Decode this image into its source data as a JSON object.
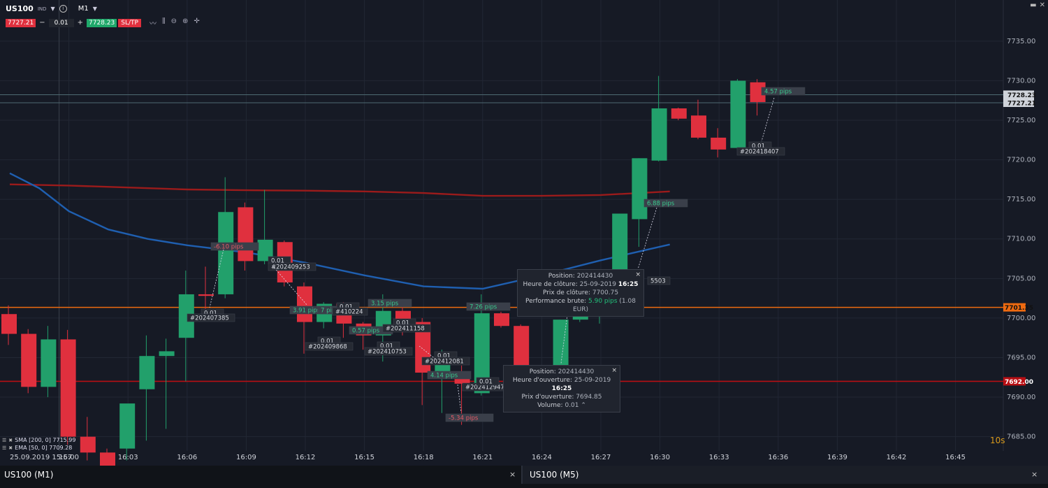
{
  "toolbar": {
    "symbol": "US100",
    "symbol_tag": "IND",
    "timeframe": "M1",
    "bid": "7727.21",
    "minus": "−",
    "quantity": "0.01",
    "plus": "+",
    "ask": "7728.23",
    "sltp": "SL/TP",
    "tool_icons": [
      "line-chart-icon",
      "candles-icon",
      "zoom-out-icon",
      "zoom-in-icon",
      "crosshair-icon"
    ]
  },
  "indicators": [
    {
      "label": "SMA [200, 0] 7715.99",
      "color": "#9b1b1b"
    },
    {
      "label": "EMA [50, 0] 7709.28",
      "color": "#1f5fb0"
    }
  ],
  "timer": "10s",
  "tabs": [
    {
      "label": "US100 (M1)",
      "close": "×"
    },
    {
      "label": "US100 (M5)",
      "close": "×"
    }
  ],
  "colors": {
    "up": "#22a06b",
    "down": "#e0303e",
    "sma": "#9b1b1b",
    "ema": "#1f5fb0",
    "orange": "#ee6a10",
    "darkred": "#b80f14"
  },
  "chart_data": {
    "type": "candlestick",
    "y_ticks": [
      7685,
      7690,
      7695,
      7700,
      7705,
      7710,
      7715,
      7720,
      7725,
      7730,
      7735
    ],
    "y_tick_labels": [
      "7685.00",
      "7690.00",
      "7695.00",
      "7700.00",
      "7705.00",
      "7710.00",
      "7715.00",
      "7720.00",
      "7725.00",
      "7730.00",
      "7735.00"
    ],
    "ylim": [
      7683.2,
      7740.2
    ],
    "x_start_label": "25.09.2019 15:57",
    "x_tick_labels": [
      "16:00",
      "16:03",
      "16:06",
      "16:09",
      "16:12",
      "16:15",
      "16:18",
      "16:21",
      "16:24",
      "16:27",
      "16:30",
      "16:33",
      "16:36",
      "16:39",
      "16:42",
      "16:45"
    ],
    "price_lines": [
      {
        "value": 7728.23,
        "label": "7728.23",
        "bg": "#cfd3da",
        "fg": "#111"
      },
      {
        "value": 7727.21,
        "label": "7727.21",
        "bg": "#cfd3da",
        "fg": "#111"
      },
      {
        "value": 7701.35,
        "label": "7701.35",
        "bg": "#ee6a10",
        "fg": "#111"
      },
      {
        "value": 7692.0,
        "label": "7692.00",
        "bg": "#b80f14",
        "fg": "#fff"
      }
    ],
    "candles": [
      {
        "o": 7700.5,
        "h": 7701.6,
        "l": 7696.6,
        "c": 7698.0
      },
      {
        "o": 7698.0,
        "h": 7698.6,
        "l": 7690.5,
        "c": 7691.3
      },
      {
        "o": 7691.3,
        "h": 7699.0,
        "l": 7690.0,
        "c": 7697.3
      },
      {
        "o": 7697.3,
        "h": 7698.5,
        "l": 7684.0,
        "c": 7685.0
      },
      {
        "o": 7685.0,
        "h": 7687.5,
        "l": 7682.0,
        "c": 7683.0
      },
      {
        "o": 7683.0,
        "h": 7683.5,
        "l": 7680.0,
        "c": 7681.0
      },
      {
        "o": 7683.5,
        "h": 7689.0,
        "l": 7682.0,
        "c": 7689.2
      },
      {
        "o": 7691.0,
        "h": 7697.8,
        "l": 7684.5,
        "c": 7695.2
      },
      {
        "o": 7695.2,
        "h": 7697.4,
        "l": 7686.0,
        "c": 7695.8
      },
      {
        "o": 7697.5,
        "h": 7706.0,
        "l": 7692.0,
        "c": 7703.0
      },
      {
        "o": 7703.0,
        "h": 7706.5,
        "l": 7701.0,
        "c": 7702.8
      },
      {
        "o": 7703.0,
        "h": 7717.8,
        "l": 7702.5,
        "c": 7713.4
      },
      {
        "o": 7714.0,
        "h": 7714.6,
        "l": 7706.0,
        "c": 7707.2
      },
      {
        "o": 7707.2,
        "h": 7716.2,
        "l": 7706.8,
        "c": 7709.9
      },
      {
        "o": 7709.6,
        "h": 7709.8,
        "l": 7704.0,
        "c": 7704.5
      },
      {
        "o": 7704.0,
        "h": 7704.5,
        "l": 7695.5,
        "c": 7699.5
      },
      {
        "o": 7699.5,
        "h": 7702.0,
        "l": 7698.7,
        "c": 7701.8
      },
      {
        "o": 7701.8,
        "h": 7702.0,
        "l": 7697.5,
        "c": 7699.3
      },
      {
        "o": 7699.3,
        "h": 7699.5,
        "l": 7696.0,
        "c": 7697.8
      },
      {
        "o": 7697.8,
        "h": 7703.0,
        "l": 7694.5,
        "c": 7700.9
      },
      {
        "o": 7700.9,
        "h": 7701.4,
        "l": 7697.8,
        "c": 7699.5
      },
      {
        "o": 7699.5,
        "h": 7700.0,
        "l": 7689.0,
        "c": 7693.1
      },
      {
        "o": 7693.1,
        "h": 7696.0,
        "l": 7688.0,
        "c": 7694.2
      },
      {
        "o": 7693.1,
        "h": 7694.0,
        "l": 7686.5,
        "c": 7691.7
      },
      {
        "o": 7690.5,
        "h": 7703.0,
        "l": 7690.2,
        "c": 7700.6
      },
      {
        "o": 7700.6,
        "h": 7700.8,
        "l": 7698.8,
        "c": 7699.0
      },
      {
        "o": 7699.0,
        "h": 7699.2,
        "l": 7689.5,
        "c": 7690.5
      },
      {
        "o": 7690.5,
        "h": 7691.6,
        "l": 7689.5,
        "c": 7691.0
      },
      {
        "o": 7691.0,
        "h": 7699.8,
        "l": 7690.3,
        "c": 7699.8
      },
      {
        "o": 7699.8,
        "h": 7704.0,
        "l": 7699.5,
        "c": 7701.8
      },
      {
        "o": 7701.8,
        "h": 7705.4,
        "l": 7699.3,
        "c": 7704.0
      },
      {
        "o": 7705.0,
        "h": 7713.2,
        "l": 7704.4,
        "c": 7713.2
      },
      {
        "o": 7712.5,
        "h": 7720.2,
        "l": 7709.0,
        "c": 7720.2
      },
      {
        "o": 7719.9,
        "h": 7730.6,
        "l": 7719.8,
        "c": 7726.5
      },
      {
        "o": 7726.5,
        "h": 7726.6,
        "l": 7725.0,
        "c": 7725.2
      },
      {
        "o": 7725.6,
        "h": 7727.6,
        "l": 7722.6,
        "c": 7722.8
      },
      {
        "o": 7722.8,
        "h": 7724.0,
        "l": 7720.3,
        "c": 7721.3
      },
      {
        "o": 7721.5,
        "h": 7730.2,
        "l": 7721.2,
        "c": 7730.0
      },
      {
        "o": 7729.8,
        "h": 7730.2,
        "l": 7725.6,
        "c": 7727.3
      }
    ],
    "sma": [
      7716.9,
      7716.75,
      7716.5,
      7716.25,
      7716.15,
      7716.1,
      7716.0,
      7715.8,
      7715.45,
      7715.45,
      7715.55,
      7716.0
    ],
    "ema": [
      7718.3,
      7716.4,
      7713.5,
      7711.2,
      7710.0,
      7709.2,
      7708.3,
      7707.0,
      7705.4,
      7704.0,
      7703.7,
      7705.4,
      7707.3,
      7709.3
    ],
    "trade_labels": [
      {
        "text": "-6.10 pips",
        "kind": "pips"
      },
      {
        "text": "0.01",
        "kind": "vol"
      },
      {
        "text": "#202409253",
        "kind": "id"
      },
      {
        "text": "0.01",
        "kind": "vol"
      },
      {
        "text": "#202407385",
        "kind": "id"
      },
      {
        "text": "3.91 pips",
        "kind": "pips"
      },
      {
        "text": "7 pips",
        "kind": "pips"
      },
      {
        "text": "0.01",
        "kind": "vol"
      },
      {
        "text": "#410224",
        "kind": "id"
      },
      {
        "text": "3.15 pips",
        "kind": "pips"
      },
      {
        "text": "0.57 pips",
        "kind": "pips"
      },
      {
        "text": "0.01",
        "kind": "vol"
      },
      {
        "text": "#202411158",
        "kind": "id"
      },
      {
        "text": "0.01",
        "kind": "vol"
      },
      {
        "text": "#202409868",
        "kind": "id"
      },
      {
        "text": "0.01",
        "kind": "vol"
      },
      {
        "text": "#202410753",
        "kind": "id"
      },
      {
        "text": "0.01",
        "kind": "vol"
      },
      {
        "text": "#202412081",
        "kind": "id"
      },
      {
        "text": "4.14 pips",
        "kind": "pips"
      },
      {
        "text": "#202412947",
        "kind": "id"
      },
      {
        "text": "-5.34 pips",
        "kind": "pips"
      },
      {
        "text": "7.26 pips",
        "kind": "pips"
      },
      {
        "text": "0.01",
        "kind": "vol"
      },
      {
        "text": "6.88 pips",
        "kind": "pips"
      },
      {
        "text": "5503",
        "kind": "id"
      },
      {
        "text": "4.57 pips",
        "kind": "pips"
      },
      {
        "text": "0.01",
        "kind": "vol"
      },
      {
        "text": "#202418407",
        "kind": "id"
      }
    ],
    "tooltips": [
      {
        "close": "×",
        "rows": [
          {
            "k": "Position:",
            "v": "202414430"
          },
          {
            "k": "Heure de clôture:",
            "v": "25-09-2019",
            "v2": "16:25"
          },
          {
            "k": "Prix de clôture:",
            "v": "7700.75"
          },
          {
            "k": "Performance brute:",
            "v": "5.90 pips",
            "v3": "(1.08 EUR)"
          }
        ]
      },
      {
        "close": "×",
        "rows": [
          {
            "k": "Position:",
            "v": "202414430"
          },
          {
            "k": "Heure d'ouverture:",
            "v": "25-09-2019",
            "v2": "16:25"
          },
          {
            "k": "Prix d'ouverture:",
            "v": "7694.85"
          },
          {
            "k": "Volume:",
            "v": "0.01"
          }
        ]
      }
    ]
  }
}
